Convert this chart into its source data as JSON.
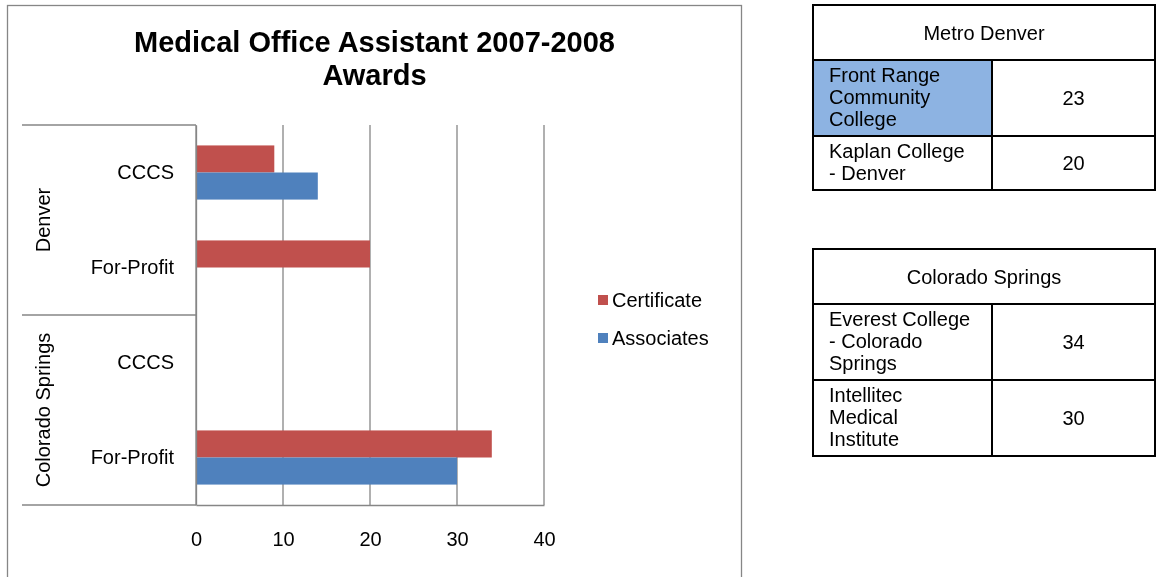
{
  "chart_data": [
    {
      "type": "bar",
      "orientation": "horizontal",
      "title": "Medical Office Assistant 2007-2008 Awards",
      "categories": [
        "CCCS",
        "For-Profit",
        "CCCS",
        "For-Profit"
      ],
      "series": [
        {
          "name": "Certificate",
          "color": "#c0504d",
          "values": [
            9,
            20,
            null,
            34
          ]
        },
        {
          "name": "Associates",
          "color": "#4f81bd",
          "values": [
            14,
            null,
            null,
            30
          ]
        }
      ],
      "xlim": [
        0,
        40
      ],
      "xticks": [
        0,
        10,
        20,
        30,
        40
      ],
      "grid": "x",
      "legend": "right",
      "annotations": [
        "Denver",
        "Colorado Springs"
      ]
    },
    {
      "type": "other",
      "title": "Metro Denver",
      "categories": [
        "Front Range Community College",
        "Kaplan College - Denver"
      ],
      "values": [
        23,
        20
      ],
      "colors": [
        "#8db3e2",
        "#ffffff"
      ],
      "data_labels": true
    },
    {
      "type": "other",
      "title": "Colorado Springs",
      "categories": [
        "Everest College - Colorado Springs",
        "Intellitec Medical Institute"
      ],
      "values": [
        34,
        30
      ],
      "colors": [
        "#ffffff",
        "#ffffff"
      ],
      "data_labels": true
    }
  ]
}
